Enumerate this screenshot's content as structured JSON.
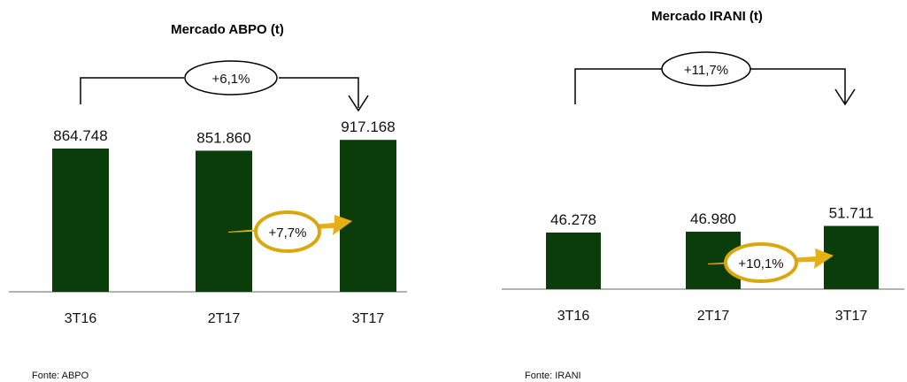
{
  "chart_data": [
    {
      "type": "bar",
      "title": "Mercado ABPO (t)",
      "categories": [
        "3T16",
        "2T17",
        "3T17"
      ],
      "values": [
        864748,
        851860,
        917168
      ],
      "value_labels": [
        "864.748",
        "851.860",
        "917.168"
      ],
      "annotations": {
        "overall_change": "+6,1%",
        "quarter_change": "+7,7%"
      },
      "source": "Fonte: ABPO",
      "colors": {
        "bar": "#0b3d0b",
        "arrow": "#e6b012"
      }
    },
    {
      "type": "bar",
      "title": "Mercado IRANI (t)",
      "categories": [
        "3T16",
        "2T17",
        "3T17"
      ],
      "values": [
        46278,
        46980,
        51711
      ],
      "value_labels": [
        "46.278",
        "46.980",
        "51.711"
      ],
      "annotations": {
        "overall_change": "+11,7%",
        "quarter_change": "+10,1%"
      },
      "source": "Fonte: IRANI",
      "colors": {
        "bar": "#0b3d0b",
        "arrow": "#e6b012"
      }
    }
  ]
}
